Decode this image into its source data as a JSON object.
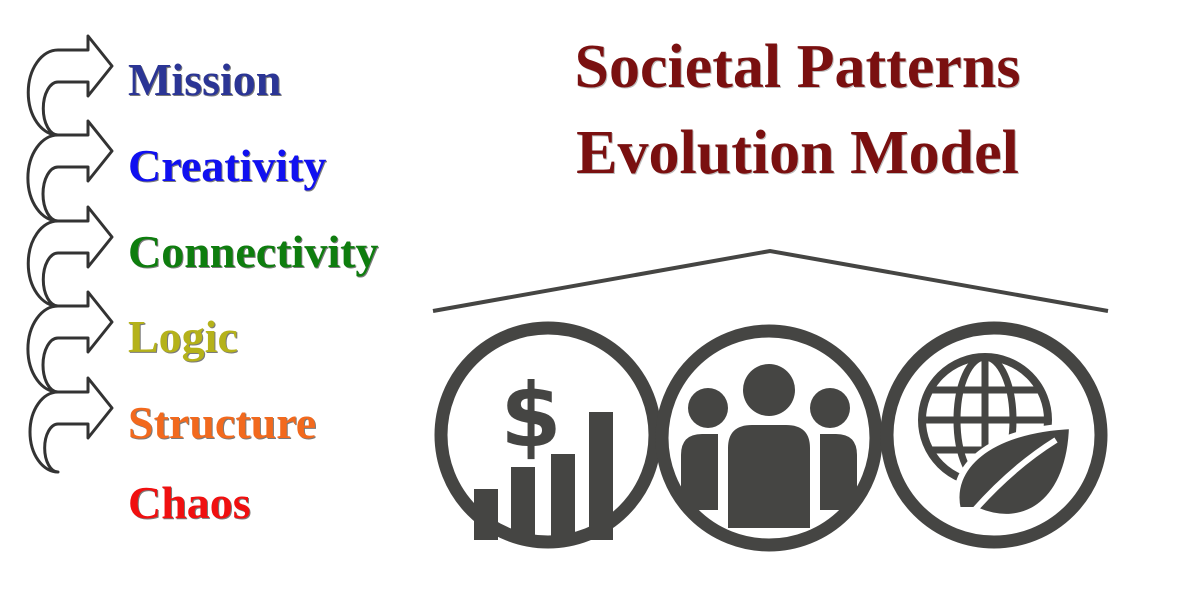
{
  "title": {
    "line1": "Societal Patterns",
    "line2": "Evolution Model",
    "color": "#7a1010"
  },
  "stages": [
    {
      "label": "Mission",
      "color": "#2b3595"
    },
    {
      "label": "Creativity",
      "color": "#1010f0"
    },
    {
      "label": "Connectivity",
      "color": "#0e7d0e"
    },
    {
      "label": "Logic",
      "color": "#b5b21a"
    },
    {
      "label": "Structure",
      "color": "#f2691d"
    },
    {
      "label": "Chaos",
      "color": "#f01010"
    }
  ],
  "pillars": [
    {
      "icon": "dollar-growth-chart-icon"
    },
    {
      "icon": "people-group-icon"
    },
    {
      "icon": "globe-leaf-icon"
    }
  ],
  "icon_color": "#454543"
}
